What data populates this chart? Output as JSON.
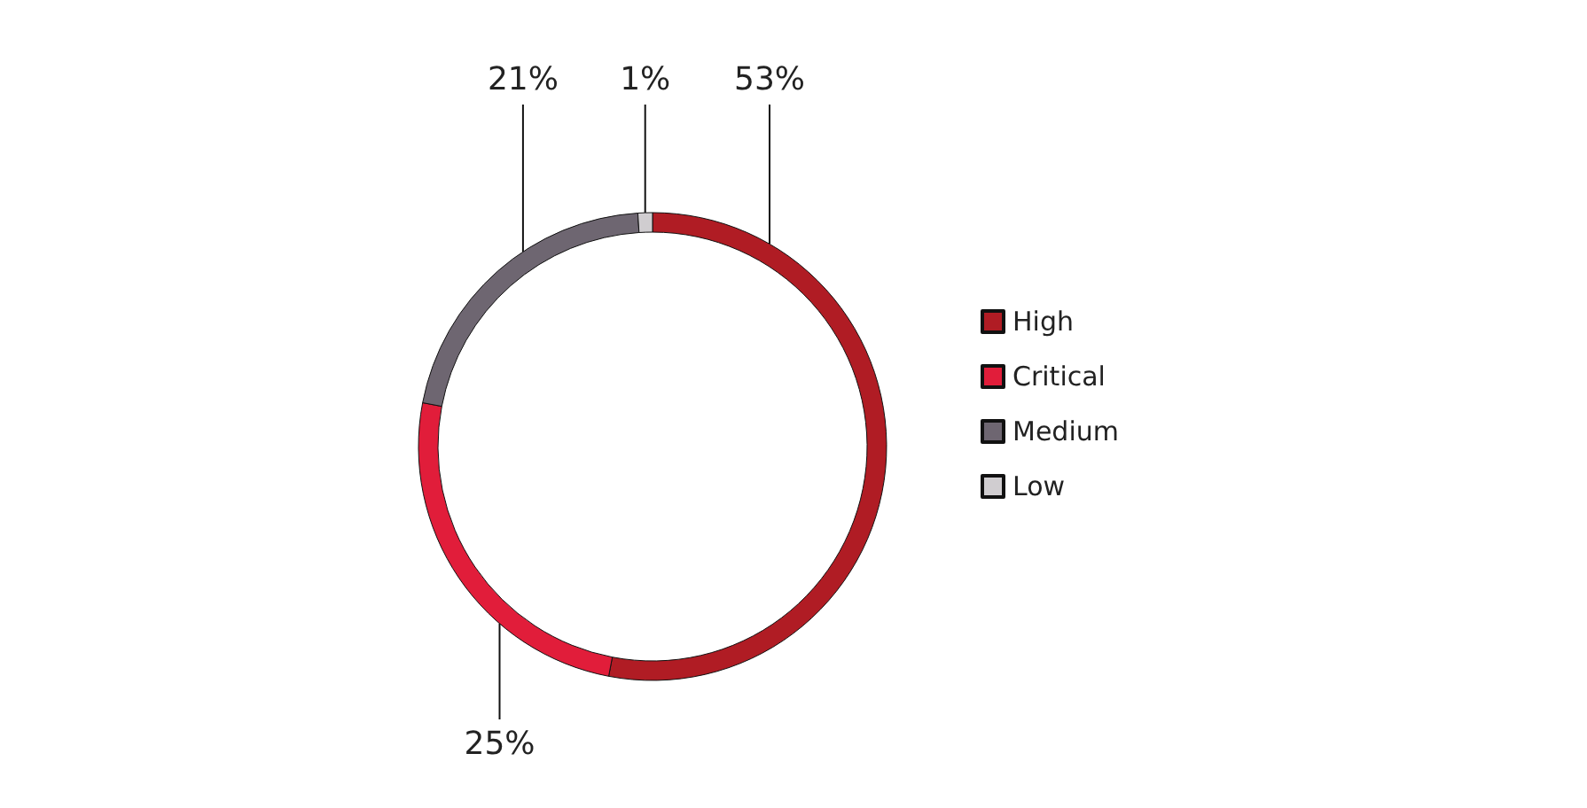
{
  "chart_data": {
    "type": "donut",
    "categories": [
      "High",
      "Critical",
      "Medium",
      "Low"
    ],
    "values": [
      53,
      25,
      21,
      1
    ],
    "colors": [
      "#b01c24",
      "#e11d3a",
      "#6e6671",
      "#d0cdd0"
    ],
    "value_labels": [
      "53%",
      "25%",
      "21%",
      "1%"
    ],
    "legend": "right"
  }
}
